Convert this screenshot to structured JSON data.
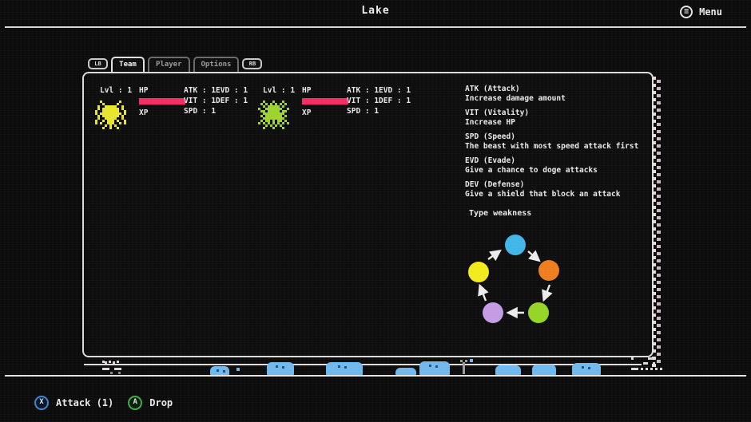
{
  "top_bar": {
    "title": "Lake",
    "menu_label": "Menu"
  },
  "tabs": {
    "lb_label": "LB",
    "rb_label": "RB",
    "items": [
      {
        "label": "Team",
        "active": true
      },
      {
        "label": "Player",
        "active": false
      },
      {
        "label": "Options",
        "active": false
      }
    ]
  },
  "team": {
    "beasts": [
      {
        "sprite": "spider-beast",
        "level_label": "Lvl : 1",
        "hp_label": "HP",
        "xp_label": "XP",
        "hp_percent": 100,
        "atk": "ATK : 1",
        "vit": "VIT : 1",
        "spd": "SPD : 1",
        "evd": "EVD : 1",
        "def": "DEF : 1"
      },
      {
        "sprite": "plant-beast",
        "level_label": "Lvl : 1",
        "hp_label": "HP",
        "xp_label": "XP",
        "hp_percent": 100,
        "atk": "ATK : 1",
        "vit": "VIT : 1",
        "spd": "SPD : 1",
        "evd": "EVD : 1",
        "def": "DEF : 1"
      }
    ]
  },
  "stat_help": [
    {
      "title": "ATK (Attack)",
      "desc": "Increase damage amount"
    },
    {
      "title": "VIT (Vitality)",
      "desc": "Increase HP"
    },
    {
      "title": "SPD (Speed)",
      "desc": "The beast with most speed attack first"
    },
    {
      "title": "EVD (Evade)",
      "desc": "Give a chance to doge attacks"
    },
    {
      "title": "DEV (Defense)",
      "desc": "Give a shield that block an attack"
    }
  ],
  "type_weakness": {
    "label": "Type weakness",
    "cycle_order": [
      "cyan",
      "orange",
      "green",
      "purple",
      "yellow"
    ],
    "direction": "clockwise",
    "node_colors": {
      "cyan": "#3fb6e8",
      "orange": "#ee7d1c",
      "green": "#96d426",
      "purple": "#c49be4",
      "yellow": "#f2ea1c"
    }
  },
  "hud": {
    "actions": [
      {
        "button": "X",
        "label": "Attack (1)"
      },
      {
        "button": "A",
        "label": "Drop"
      }
    ]
  },
  "colors": {
    "background": "#0b0b0b",
    "text": "#eaeaea",
    "hp_bar": "#f92a64",
    "panel_border": "#dcdada",
    "spider_sprite": "#e8e52c",
    "plant_sprite": "#9ed32f",
    "water_blob": "#6fb9ee"
  }
}
